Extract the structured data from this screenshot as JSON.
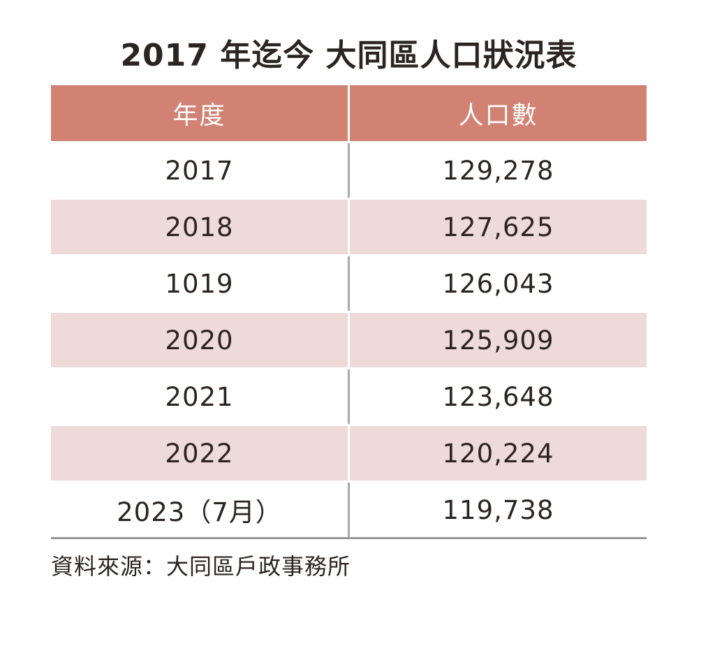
{
  "title": "2017 年迄今 大同區人口狀況表",
  "table": {
    "columns": [
      "年度",
      "人口數"
    ],
    "rows": [
      {
        "year": "2017",
        "population": "129,278"
      },
      {
        "year": "2018",
        "population": "127,625"
      },
      {
        "year": "1019",
        "population": "126,043"
      },
      {
        "year": "2020",
        "population": "125,909"
      },
      {
        "year": "2021",
        "population": "123,648"
      },
      {
        "year": "2022",
        "population": "120,224"
      },
      {
        "year": "2023（7月）",
        "population": "119,738"
      }
    ]
  },
  "source": "資料來源：大同區戶政事務所",
  "colors": {
    "header_bg": "#d18272",
    "header_text": "#ffffff",
    "row_alt_bg": "#eedad8",
    "row_bg": "#ffffff",
    "divider": "#a9a9a9",
    "bottom_border": "#969696",
    "text": "#2b2422"
  },
  "chart_data": {
    "type": "table",
    "title": "2017 年迄今 大同區人口狀況表",
    "columns": [
      "年度",
      "人口數"
    ],
    "rows": [
      [
        "2017",
        129278
      ],
      [
        "2018",
        127625
      ],
      [
        "1019",
        126043
      ],
      [
        "2020",
        125909
      ],
      [
        "2021",
        123648
      ],
      [
        "2022",
        120224
      ],
      [
        "2023（7月）",
        119738
      ]
    ],
    "source": "資料來源：大同區戶政事務所"
  }
}
